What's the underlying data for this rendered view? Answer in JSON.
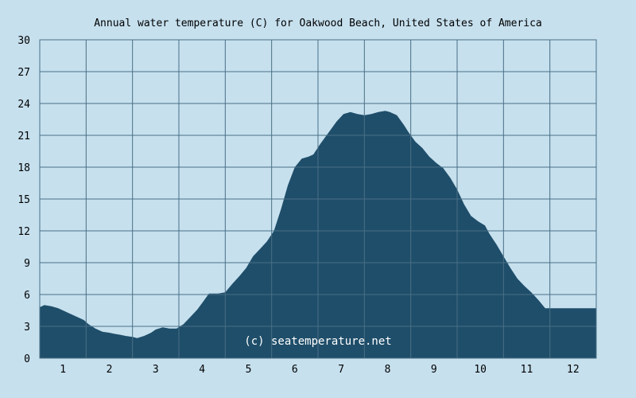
{
  "chart_data": {
    "type": "area",
    "title": "Annual water temperature (C) for Oakwood Beach, United States of America",
    "xlabel": "",
    "ylabel": "",
    "x_ticks": [
      "1",
      "2",
      "3",
      "4",
      "5",
      "6",
      "7",
      "8",
      "9",
      "10",
      "11",
      "12"
    ],
    "y_ticks": [
      "0",
      "3",
      "6",
      "9",
      "12",
      "15",
      "18",
      "21",
      "24",
      "27",
      "30"
    ],
    "xlim": [
      0.5,
      12.5
    ],
    "ylim": [
      0,
      30
    ],
    "grid": true,
    "x": [
      0.5,
      0.6,
      0.75,
      0.9,
      1.0,
      1.15,
      1.3,
      1.45,
      1.55,
      1.7,
      1.85,
      2.0,
      2.1,
      2.25,
      2.35,
      2.5,
      2.6,
      2.75,
      2.9,
      3.0,
      3.15,
      3.3,
      3.45,
      3.6,
      3.75,
      3.9,
      4.0,
      4.15,
      4.35,
      4.5,
      4.65,
      4.8,
      4.95,
      5.1,
      5.25,
      5.4,
      5.55,
      5.7,
      5.85,
      6.0,
      6.15,
      6.3,
      6.4,
      6.55,
      6.75,
      6.9,
      7.05,
      7.2,
      7.35,
      7.5,
      7.65,
      7.8,
      7.95,
      8.05,
      8.2,
      8.35,
      8.45,
      8.6,
      8.75,
      8.9,
      9.05,
      9.2,
      9.35,
      9.5,
      9.65,
      9.8,
      9.95,
      10.1,
      10.2,
      10.35,
      10.5,
      10.65,
      10.8,
      10.95,
      11.1,
      11.25,
      11.4,
      11.55,
      11.7,
      11.85,
      12.0,
      12.15,
      12.3,
      12.5
    ],
    "series": [
      {
        "values": [
          4.8,
          5.0,
          4.9,
          4.7,
          4.5,
          4.2,
          3.9,
          3.6,
          3.2,
          2.8,
          2.5,
          2.4,
          2.3,
          2.2,
          2.1,
          2.0,
          1.9,
          2.1,
          2.4,
          2.7,
          2.9,
          2.8,
          2.8,
          3.2,
          3.9,
          4.6,
          5.2,
          6.1,
          6.1,
          6.2,
          7.0,
          7.7,
          8.5,
          9.6,
          10.3,
          11.0,
          12.0,
          14.0,
          16.3,
          18.0,
          18.8,
          19.0,
          19.2,
          20.2,
          21.4,
          22.3,
          23.0,
          23.2,
          23.0,
          22.9,
          23.0,
          23.2,
          23.3,
          23.2,
          22.9,
          22.0,
          21.3,
          20.4,
          19.8,
          19.0,
          18.4,
          17.9,
          17.0,
          15.9,
          14.5,
          13.4,
          12.9,
          12.5,
          11.7,
          10.7,
          9.6,
          8.5,
          7.5,
          6.8,
          6.2,
          5.5,
          4.7,
          4.7,
          4.7,
          4.7,
          4.7,
          4.7,
          4.7,
          4.7
        ]
      }
    ],
    "colors": {
      "page_background": "#c6e0ee",
      "area_fill": "#1f4e6a",
      "grid": "#4a6f85",
      "watermark": "#ffffff"
    },
    "annotations": [
      "(c) seatemperature.net"
    ]
  }
}
